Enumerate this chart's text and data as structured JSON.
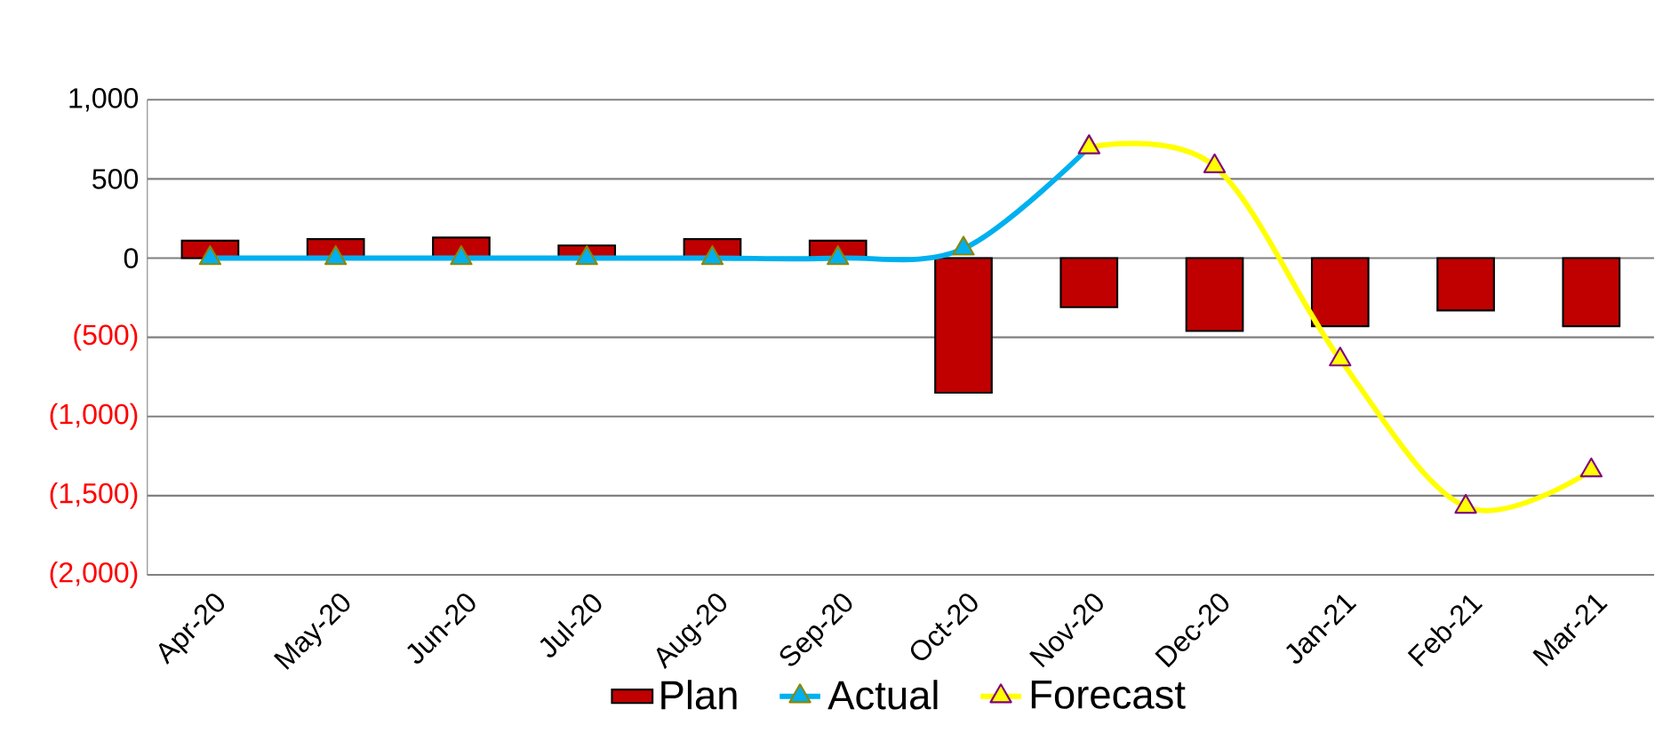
{
  "chart_data": {
    "type": "bar",
    "categories": [
      "Apr-20",
      "May-20",
      "Jun-20",
      "Jul-20",
      "Aug-20",
      "Sep-20",
      "Oct-20",
      "Nov-20",
      "Dec-20",
      "Jan-21",
      "Feb-21",
      "Mar-21"
    ],
    "series": [
      {
        "name": "Plan",
        "color": "#c00000",
        "values": [
          110,
          120,
          130,
          80,
          120,
          110,
          -850,
          -310,
          -460,
          -430,
          -330,
          -430
        ]
      },
      {
        "name": "Actual",
        "type": "line",
        "color": "#00b0f0",
        "marker": "triangle",
        "values": [
          0,
          0,
          0,
          0,
          0,
          0,
          60,
          700,
          null,
          null,
          null,
          null
        ]
      },
      {
        "name": "Forecast",
        "type": "line",
        "color": "#ffff00",
        "marker": "triangle",
        "values": [
          null,
          null,
          null,
          null,
          null,
          null,
          null,
          700,
          580,
          -640,
          -1570,
          -1340
        ]
      }
    ],
    "ylim": [
      -2000,
      1000
    ],
    "yticks": [
      {
        "value": -2000,
        "label": "(2,000)"
      },
      {
        "value": -1500,
        "label": "(1,500)"
      },
      {
        "value": -1000,
        "label": "(1,000)"
      },
      {
        "value": -500,
        "label": "(500)"
      },
      0,
      500,
      {
        "value": 1000,
        "label": "1,000"
      }
    ],
    "grid": "y",
    "legend": "bottom",
    "line_style": "solid"
  }
}
